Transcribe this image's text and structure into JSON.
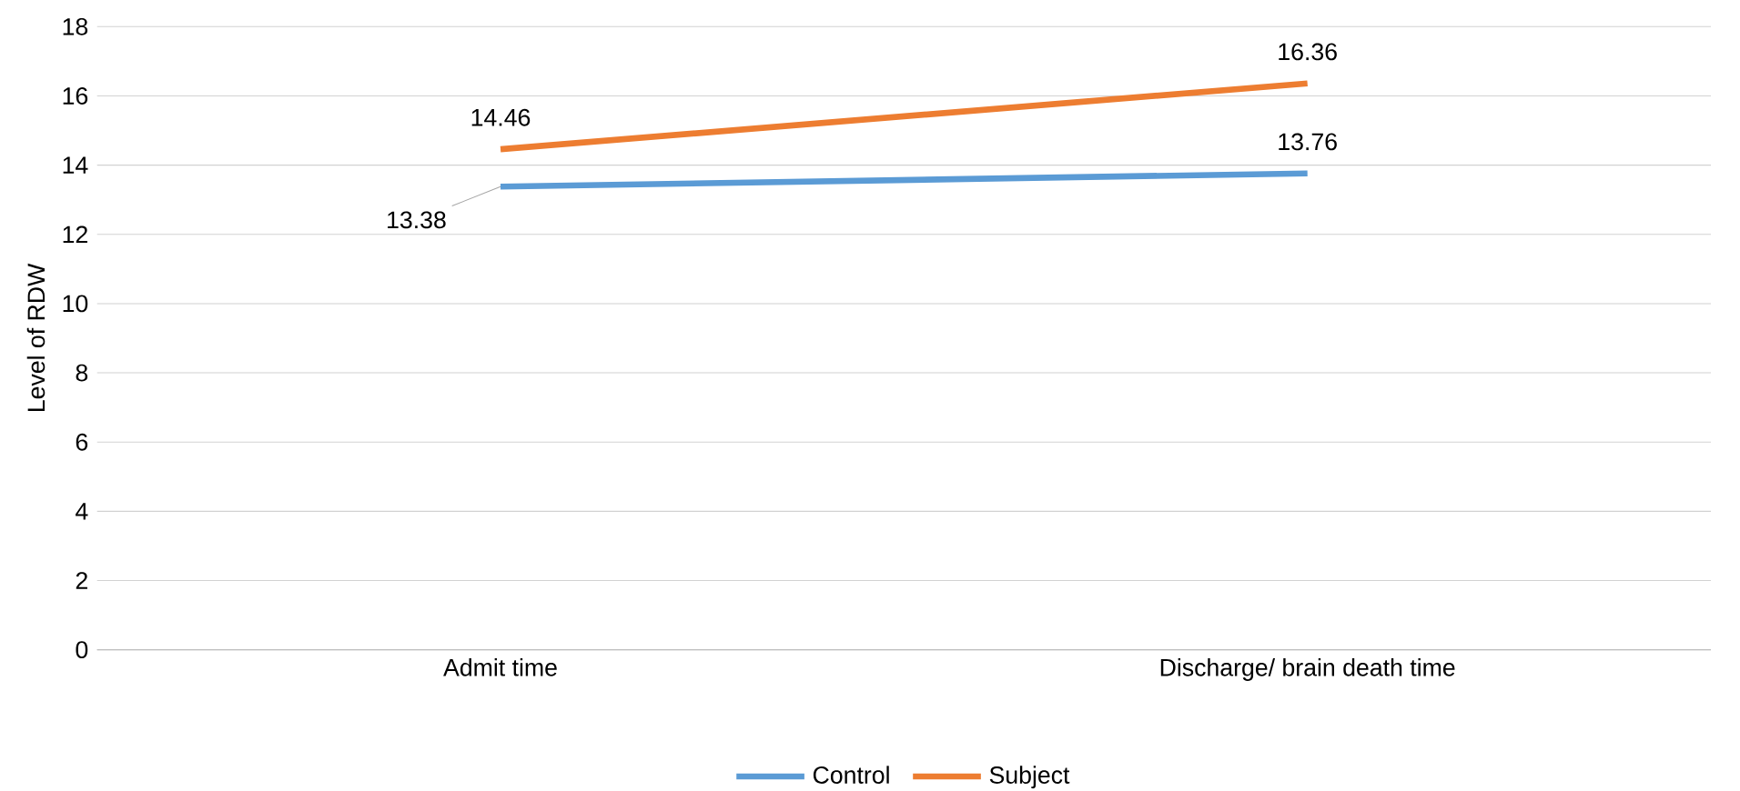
{
  "chart_data": {
    "type": "line",
    "ylabel": "Level of RDW",
    "categories": [
      "Admit time",
      "Discharge/ brain death time"
    ],
    "series": [
      {
        "name": "Control",
        "color": "#5b9bd5",
        "values": [
          13.38,
          13.76
        ],
        "value_labels": [
          "13.38",
          "13.76"
        ]
      },
      {
        "name": "Subject",
        "color": "#ed7d31",
        "values": [
          14.46,
          16.36
        ],
        "value_labels": [
          "14.46",
          "16.36"
        ]
      }
    ],
    "ylim": [
      0,
      18
    ],
    "yticks": [
      0,
      2,
      4,
      6,
      8,
      10,
      12,
      14,
      16,
      18
    ],
    "grid": "y",
    "legend": "bottom",
    "marker": "none",
    "line_style": "solid"
  }
}
